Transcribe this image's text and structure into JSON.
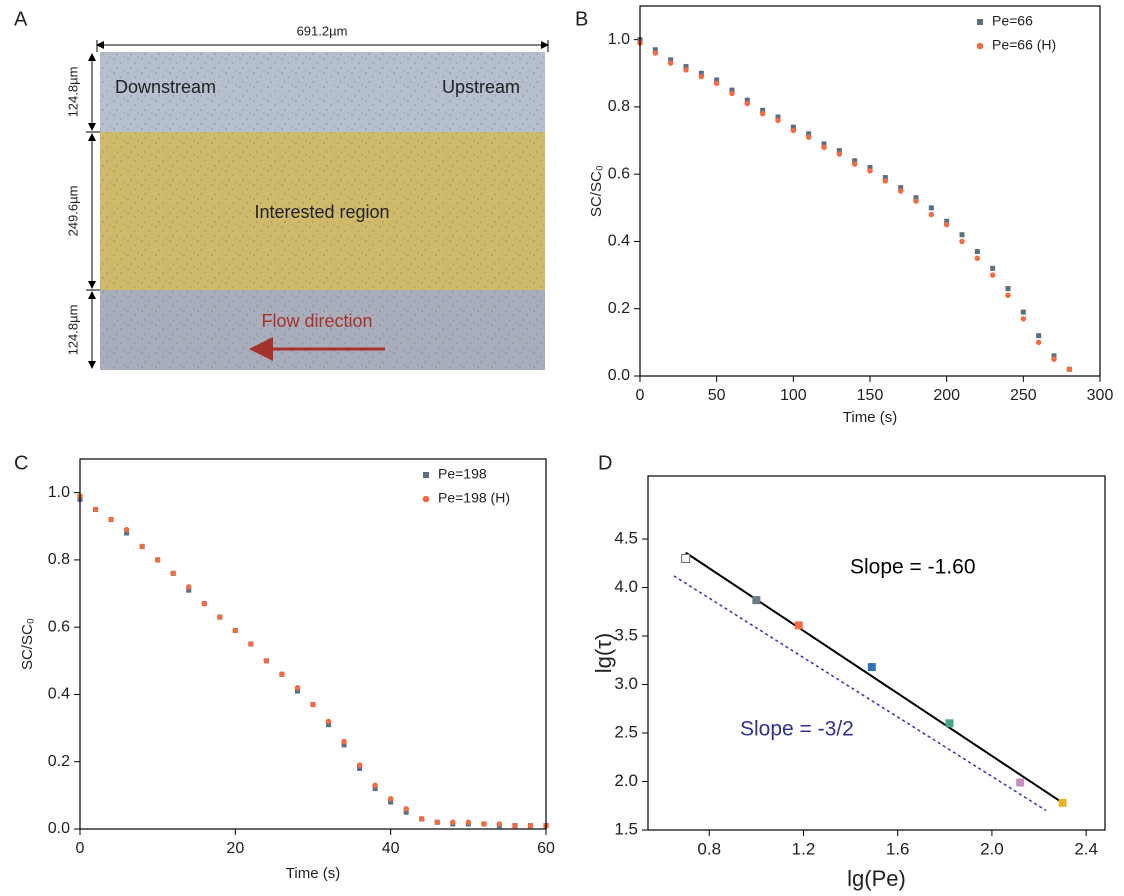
{
  "diagram": {
    "label": "A",
    "width_label": "691.2µm",
    "regions": [
      {
        "height_label": "124.8µm",
        "labels": [
          "Downstream",
          "Upstream"
        ]
      },
      {
        "height_label": "249.6µm",
        "labels": [
          "Interested region"
        ]
      },
      {
        "height_label": "124.8µm",
        "labels": [
          "Flow direction"
        ]
      }
    ]
  },
  "chart_data": [
    {
      "type": "scatter",
      "label": "B",
      "xlabel": "Time (s)",
      "ylabel": "SC/SC₀",
      "xlim": [
        0,
        300
      ],
      "xticks": [
        0,
        50,
        100,
        150,
        200,
        250,
        300
      ],
      "ylim": [
        0,
        1.1
      ],
      "yticks": [
        {
          "value": 0,
          "label": "0.0"
        },
        0.2,
        0.4,
        0.6,
        0.8,
        {
          "value": 1,
          "label": "1.0"
        }
      ],
      "legend": "upper right",
      "x": [
        0,
        10,
        20,
        30,
        40,
        50,
        60,
        70,
        80,
        90,
        100,
        110,
        120,
        130,
        140,
        150,
        160,
        170,
        180,
        190,
        200,
        210,
        220,
        230,
        240,
        250,
        260,
        270,
        280
      ],
      "series": [
        {
          "name": "Pe=66",
          "color": "#5b6f80",
          "marker": "square",
          "values": [
            1.0,
            0.97,
            0.94,
            0.92,
            0.9,
            0.88,
            0.85,
            0.82,
            0.79,
            0.77,
            0.74,
            0.72,
            0.69,
            0.67,
            0.64,
            0.62,
            0.59,
            0.56,
            0.53,
            0.5,
            0.46,
            0.42,
            0.37,
            0.32,
            0.26,
            0.19,
            0.12,
            0.06,
            0.02
          ]
        },
        {
          "name": "Pe=66 (H)",
          "color": "#f26b43",
          "marker": "circle",
          "values": [
            0.99,
            0.96,
            0.93,
            0.91,
            0.89,
            0.87,
            0.84,
            0.81,
            0.78,
            0.76,
            0.73,
            0.71,
            0.68,
            0.66,
            0.63,
            0.61,
            0.58,
            0.55,
            0.52,
            0.48,
            0.45,
            0.4,
            0.35,
            0.3,
            0.24,
            0.17,
            0.1,
            0.05,
            0.02
          ]
        }
      ]
    },
    {
      "type": "scatter",
      "label": "C",
      "xlabel": "Time (s)",
      "ylabel": "SC/SC₀",
      "xlim": [
        0,
        60
      ],
      "xticks": [
        0,
        20,
        40,
        60
      ],
      "ylim": [
        0,
        1.1
      ],
      "yticks": [
        {
          "value": 0,
          "label": "0.0"
        },
        0.2,
        0.4,
        0.6,
        0.8,
        {
          "value": 1,
          "label": "1.0"
        }
      ],
      "legend": "upper right",
      "x": [
        0,
        2,
        4,
        6,
        8,
        10,
        12,
        14,
        16,
        18,
        20,
        22,
        24,
        26,
        28,
        30,
        32,
        34,
        36,
        38,
        40,
        42,
        44,
        46,
        48,
        50,
        52,
        54,
        56,
        58,
        60
      ],
      "series": [
        {
          "name": "Pe=198",
          "color": "#5b6f80",
          "marker": "square",
          "values": [
            0.98,
            0.95,
            0.92,
            0.88,
            0.84,
            0.8,
            0.76,
            0.71,
            0.67,
            0.63,
            0.59,
            0.55,
            0.5,
            0.46,
            0.41,
            0.37,
            0.31,
            0.25,
            0.18,
            0.12,
            0.08,
            0.05,
            0.03,
            0.02,
            0.015,
            0.015,
            0.015,
            0.01,
            0.01,
            0.01,
            0.01
          ]
        },
        {
          "name": "Pe=198 (H)",
          "color": "#f26b43",
          "marker": "circle",
          "values": [
            0.99,
            0.95,
            0.92,
            0.89,
            0.84,
            0.8,
            0.76,
            0.72,
            0.67,
            0.63,
            0.59,
            0.55,
            0.5,
            0.46,
            0.42,
            0.37,
            0.32,
            0.26,
            0.19,
            0.13,
            0.09,
            0.06,
            0.03,
            0.02,
            0.02,
            0.02,
            0.015,
            0.015,
            0.01,
            0.01,
            0.01
          ]
        }
      ]
    },
    {
      "type": "scatter",
      "label": "D",
      "xlabel": "lg(Pe)",
      "ylabel": "lg(τ)",
      "xlim": [
        0.54,
        2.48
      ],
      "xticks": [
        0.8,
        1.2,
        1.6,
        {
          "value": 2,
          "label": "2.0"
        },
        2.4
      ],
      "ylim": [
        1.5,
        5.15
      ],
      "yticks": [
        1.5,
        {
          "value": 2,
          "label": "2.0"
        },
        2.5,
        {
          "value": 3,
          "label": "3.0"
        },
        3.5,
        {
          "value": 4,
          "label": "4.0"
        },
        4.5
      ],
      "x": [
        0.7,
        1.0,
        1.18,
        1.49,
        1.82,
        2.12,
        2.3
      ],
      "values": [
        4.3,
        3.87,
        3.61,
        3.18,
        2.6,
        1.99,
        1.78
      ],
      "colors": [
        "#ffffff",
        "#6d7b83",
        "#f26b43",
        "#2e75b6",
        "#4aa58a",
        "#c78dc0",
        "#e8b428"
      ],
      "lines": [
        {
          "x": [
            0.7,
            2.3
          ],
          "values": [
            4.36,
            1.78
          ],
          "color": "#000000",
          "dash": false
        },
        {
          "x": [
            0.65,
            2.23
          ],
          "values": [
            4.12,
            1.7
          ],
          "color": "#3333aa",
          "dash": true
        }
      ],
      "annotations": [
        {
          "text": "Slope = -1.60",
          "color": "#000000"
        },
        {
          "text": "Slope = -3/2",
          "color": "#2e3192"
        }
      ]
    }
  ]
}
